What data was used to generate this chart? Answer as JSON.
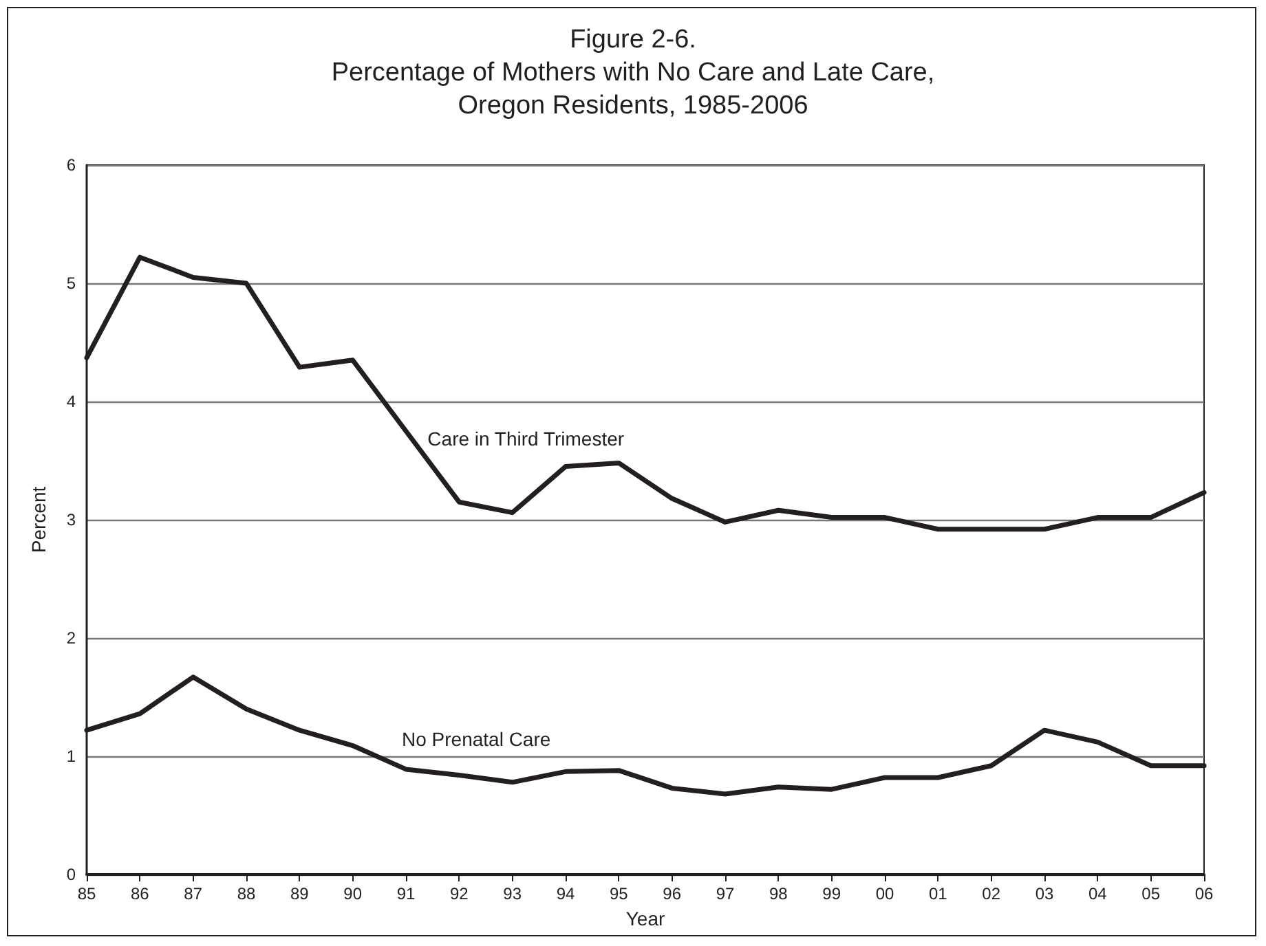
{
  "chart_data": {
    "type": "line",
    "title": "Figure 2-6.\nPercentage of Mothers with No Care and Late Care,\nOregon Residents, 1985-2006",
    "xlabel": "Year",
    "ylabel": "Percent",
    "categories": [
      "85",
      "86",
      "87",
      "88",
      "89",
      "90",
      "91",
      "92",
      "93",
      "94",
      "95",
      "96",
      "97",
      "98",
      "99",
      "00",
      "01",
      "02",
      "03",
      "04",
      "05",
      "06"
    ],
    "series": [
      {
        "name": "Care in Third Trimester",
        "color": "#231f20",
        "values": [
          4.37,
          5.22,
          5.05,
          5.0,
          4.29,
          4.35,
          3.75,
          3.15,
          3.06,
          3.45,
          3.48,
          3.18,
          2.98,
          3.08,
          3.02,
          3.02,
          2.92,
          2.92,
          2.92,
          3.02,
          3.02,
          3.23
        ]
      },
      {
        "name": "No Prenatal Care",
        "color": "#231f20",
        "values": [
          1.22,
          1.36,
          1.67,
          1.4,
          1.22,
          1.09,
          0.89,
          0.84,
          0.78,
          0.87,
          0.88,
          0.73,
          0.68,
          0.74,
          0.72,
          0.82,
          0.82,
          0.92,
          1.22,
          1.12,
          0.92,
          0.92
        ]
      }
    ],
    "ylim": [
      0,
      6
    ],
    "yticks": [
      0,
      1,
      2,
      3,
      4,
      5,
      6
    ],
    "grid": "y",
    "legend": false,
    "marker": "none",
    "line_style": "solid"
  }
}
